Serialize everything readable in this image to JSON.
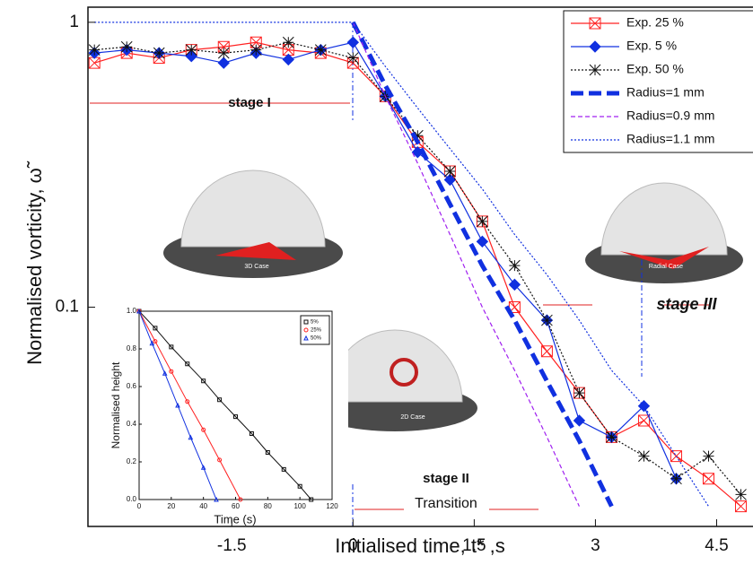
{
  "chart_data": [
    {
      "type": "line",
      "xlabel": "Initialised time,  t*   ,s",
      "ylabel": "Normalised vorticity, ω̃",
      "xlim": [
        -3.28,
        4.95
      ],
      "ylim": [
        0.017,
        1.13
      ],
      "yscale": "log",
      "xticks": [
        -1.5,
        0,
        1.5,
        3,
        4.5
      ],
      "yticks": [
        1,
        0.1
      ],
      "x": [
        -3.2,
        -2.8,
        -2.4,
        -2,
        -1.6,
        -1.2,
        -0.8,
        -0.4,
        0,
        0.4,
        0.8,
        1.2,
        1.6,
        2.0,
        2.4,
        2.8,
        3.2,
        3.6,
        4.0,
        4.4,
        4.8
      ],
      "series": [
        {
          "name": "Exp. 25 %",
          "color": "#ff2020",
          "marker": "crossed-square",
          "dash": "solid",
          "values": [
            0.72,
            0.78,
            0.75,
            0.8,
            0.82,
            0.85,
            0.8,
            0.78,
            0.72,
            0.55,
            0.38,
            0.3,
            0.2,
            0.1,
            0.07,
            0.05,
            0.035,
            0.04,
            0.03,
            0.025,
            0.02
          ]
        },
        {
          "name": "Exp.  5 %",
          "color": "#1030e0",
          "marker": "diamond",
          "dash": "solid",
          "values": [
            0.78,
            0.8,
            0.78,
            0.76,
            0.72,
            0.78,
            0.74,
            0.8,
            0.85,
            0.55,
            0.35,
            0.28,
            0.17,
            0.12,
            0.09,
            0.04,
            0.035,
            0.045,
            0.025,
            null,
            null
          ]
        },
        {
          "name": "Exp. 50 %",
          "color": "#111111",
          "marker": "asterisk",
          "dash": "dotted",
          "values": [
            0.8,
            0.82,
            0.78,
            0.8,
            0.78,
            0.8,
            0.85,
            0.8,
            0.75,
            0.55,
            0.4,
            0.3,
            0.2,
            0.14,
            0.09,
            0.05,
            0.035,
            0.03,
            0.025,
            0.03,
            0.022
          ]
        },
        {
          "name": "Radius=1 mm",
          "color": "#1030e0",
          "marker": "none",
          "dash": "thick-dash",
          "values": [
            null,
            null,
            null,
            null,
            null,
            null,
            null,
            null,
            1,
            0.6,
            0.38,
            0.23,
            0.14,
            0.09,
            0.055,
            0.034,
            0.02,
            null,
            null,
            null,
            null
          ]
        },
        {
          "name": "Radius=0.9 mm",
          "color": "#a020f0",
          "marker": "none",
          "dash": "dashed",
          "values": [
            null,
            null,
            null,
            null,
            null,
            null,
            null,
            null,
            1,
            0.55,
            0.32,
            0.18,
            0.1,
            0.06,
            0.035,
            0.02,
            null,
            null,
            null,
            null,
            null
          ]
        },
        {
          "name": "Radius=1.1 mm",
          "color": "#1030e0",
          "marker": "none",
          "dash": "dotted",
          "values": [
            1,
            1,
            1,
            1,
            1,
            1,
            1,
            1,
            1,
            0.7,
            0.5,
            0.36,
            0.26,
            0.18,
            0.13,
            0.09,
            0.06,
            0.045,
            0.03,
            0.02,
            null
          ]
        }
      ],
      "annotations": [
        "stage I",
        "stage II",
        "Transition",
        "stage III",
        "3D Case",
        "Radial Case",
        "2D Case"
      ]
    },
    {
      "type": "line",
      "xlabel": "Time (s)",
      "ylabel": "Normalised height",
      "xlim": [
        0,
        120
      ],
      "ylim": [
        0,
        1
      ],
      "xticks": [
        0,
        20,
        40,
        60,
        80,
        100,
        120
      ],
      "yticks": [
        {
          "value": 0,
          "label": "0.0"
        },
        0.2,
        0.4,
        0.6,
        0.8,
        {
          "value": 1,
          "label": "1.0"
        }
      ],
      "series": [
        {
          "name": "5%",
          "color": "#111111",
          "marker": "square",
          "x": [
            0,
            10,
            20,
            30,
            40,
            50,
            60,
            70,
            80,
            90,
            100,
            107
          ],
          "values": [
            1,
            0.91,
            0.81,
            0.72,
            0.63,
            0.53,
            0.44,
            0.35,
            0.25,
            0.16,
            0.07,
            0
          ]
        },
        {
          "name": "25%",
          "color": "#ff2020",
          "marker": "circle",
          "x": [
            0,
            10,
            20,
            30,
            40,
            50,
            63
          ],
          "values": [
            1,
            0.84,
            0.68,
            0.52,
            0.37,
            0.21,
            0
          ]
        },
        {
          "name": "50%",
          "color": "#1030e0",
          "marker": "triangle",
          "x": [
            0,
            8,
            16,
            24,
            32,
            40,
            48
          ],
          "values": [
            1,
            0.83,
            0.67,
            0.5,
            0.33,
            0.17,
            0
          ]
        }
      ]
    }
  ]
}
